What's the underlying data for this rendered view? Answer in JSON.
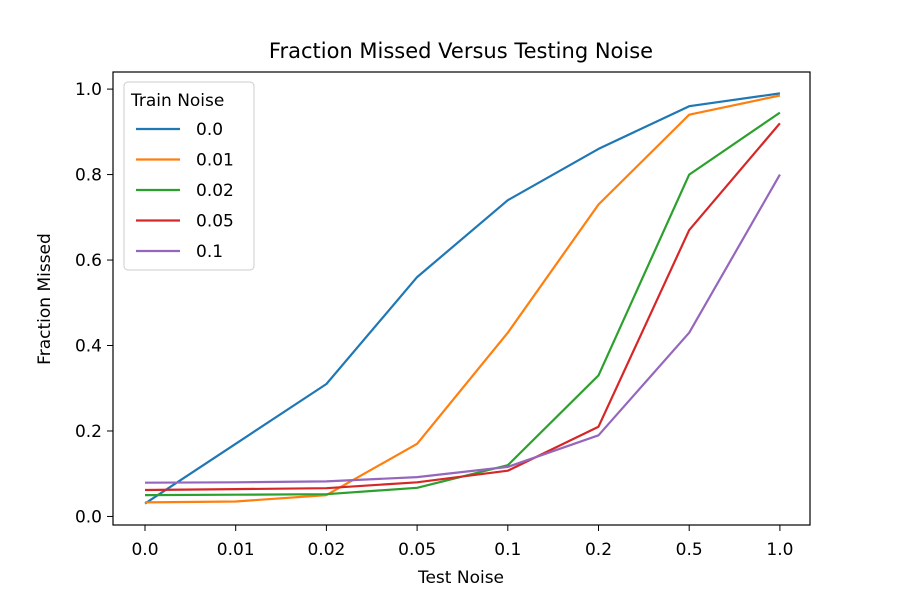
{
  "chart_data": {
    "type": "line",
    "title": "Fraction Missed Versus Testing Noise",
    "xlabel": "Test Noise",
    "ylabel": "Fraction Missed",
    "categories": [
      "0.0",
      "0.01",
      "0.02",
      "0.05",
      "0.1",
      "0.2",
      "0.5",
      "1.0"
    ],
    "ylim": [
      -0.02,
      1.04
    ],
    "yticks": [
      "0.0",
      "0.2",
      "0.4",
      "0.6",
      "0.8",
      "1.0"
    ],
    "grid": false,
    "legend": {
      "title": "Train Noise",
      "placement": "top-left"
    },
    "series": [
      {
        "name": "0.0",
        "color": "#1f77b4",
        "values": [
          0.03,
          0.17,
          0.31,
          0.56,
          0.74,
          0.86,
          0.96,
          0.99
        ]
      },
      {
        "name": "0.01",
        "color": "#ff7f0e",
        "values": [
          0.033,
          0.035,
          0.05,
          0.17,
          0.43,
          0.73,
          0.94,
          0.985
        ]
      },
      {
        "name": "0.02",
        "color": "#2ca02c",
        "values": [
          0.05,
          0.051,
          0.052,
          0.067,
          0.12,
          0.33,
          0.8,
          0.945
        ]
      },
      {
        "name": "0.05",
        "color": "#d62728",
        "values": [
          0.062,
          0.064,
          0.066,
          0.08,
          0.107,
          0.21,
          0.67,
          0.92
        ]
      },
      {
        "name": "0.1",
        "color": "#9467bd",
        "values": [
          0.079,
          0.08,
          0.082,
          0.092,
          0.116,
          0.19,
          0.43,
          0.8
        ]
      }
    ]
  }
}
